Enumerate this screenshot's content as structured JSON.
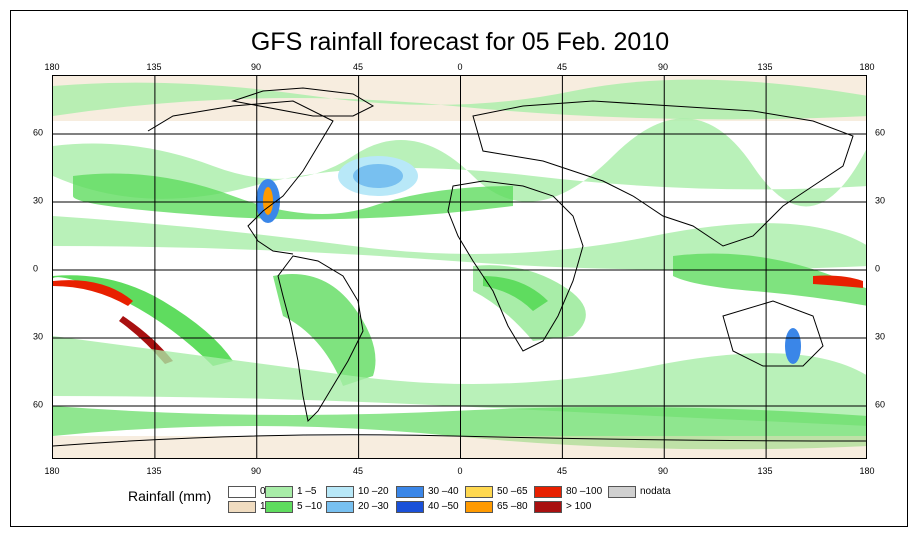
{
  "title": "GFS rainfall forecast for 05 Feb. 2010",
  "axes": {
    "lon_ticks": [
      "180",
      "135",
      "90",
      "45",
      "0",
      "45",
      "90",
      "135",
      "180"
    ],
    "lat_ticks": [
      "60",
      "30",
      "0",
      "30",
      "60"
    ]
  },
  "legend": {
    "title": "Rainfall (mm)",
    "items": [
      {
        "label": "0",
        "color": "#ffffff"
      },
      {
        "label": "1",
        "color": "#f0dcc0"
      },
      {
        "label": "1 –5",
        "color": "#a8eda8"
      },
      {
        "label": "5 –10",
        "color": "#5fdc5f"
      },
      {
        "label": "10 –20",
        "color": "#b8e8f8"
      },
      {
        "label": "20 –30",
        "color": "#78c0f0"
      },
      {
        "label": "30 –40",
        "color": "#3a86e8"
      },
      {
        "label": "40 –50",
        "color": "#1a50d8"
      },
      {
        "label": "50 –65",
        "color": "#ffd850"
      },
      {
        "label": "65 –80",
        "color": "#ff9a00"
      },
      {
        "label": "80 –100",
        "color": "#e82000"
      },
      {
        "label": "> 100",
        "color": "#a81010"
      },
      {
        "label": "nodata",
        "color": "#d0d0d0"
      }
    ]
  }
}
